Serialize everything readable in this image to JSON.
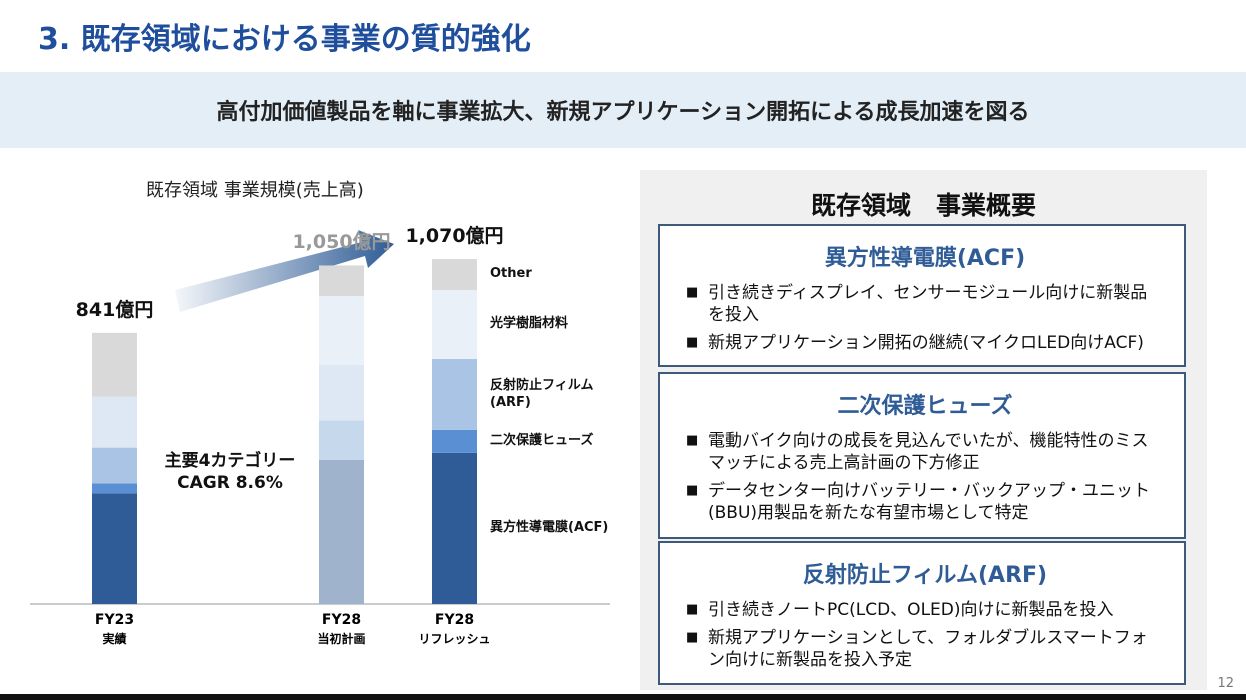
{
  "header": {
    "title": "3. 既存領域における事業の質的強化",
    "banner": "高付加価値製品を軸に事業拡大、新規アプリケーション開拓による成長加速を図る"
  },
  "chart_data": {
    "type": "stacked-bar",
    "title": "既存領域 事業規模(売上高)",
    "categories": [
      "FY23",
      "FY28",
      "FY28"
    ],
    "category_sublabels": [
      "実績",
      "当初計画",
      "リフレッシュ"
    ],
    "series": [
      {
        "name": "異方性導電膜(ACF)",
        "colors": [
          "#2f5c96",
          "#9fb4cc",
          "#2f5c96"
        ],
        "values": [
          343,
          447,
          469
        ]
      },
      {
        "name": "二次保護ヒューズ",
        "colors": [
          "#5b8fd4",
          "#c5d8ec",
          "#5b8fd4"
        ],
        "values": [
          31,
          122,
          71
        ]
      },
      {
        "name": "反射防止フィルム\n(ARF)",
        "colors": [
          "#a9c4e4",
          "#dde8f4",
          "#a9c4e4"
        ],
        "values": [
          111,
          173,
          220
        ]
      },
      {
        "name": "光学樹脂材料",
        "colors": [
          "#dde8f4",
          "#e9f0f8",
          "#e9f0f8"
        ],
        "values": [
          158,
          213,
          214
        ]
      },
      {
        "name": "Other",
        "colors": [
          "#d9d9d9",
          "#d9d9d9",
          "#d9d9d9"
        ],
        "values": [
          198,
          95,
          96
        ]
      }
    ],
    "totals": [
      841,
      1050,
      1070
    ],
    "total_labels": [
      "841億円",
      "1,050億円",
      "1,070億円"
    ],
    "total_label_colors": [
      "#111111",
      "#999999",
      "#111111"
    ],
    "ylim": [
      0,
      1070
    ],
    "annotation": "主要4カテゴリー\nCAGR 8.6%"
  },
  "overview": {
    "title": "既存領域　事業概要",
    "sections": [
      {
        "heading": "異方性導電膜(ACF)",
        "bullets": [
          "引き続きディスプレイ、センサーモジュール向けに新製品を投入",
          "新規アプリケーション開拓の継続(マイクロLED向けACF)"
        ]
      },
      {
        "heading": "二次保護ヒューズ",
        "bullets": [
          "電動バイク向けの成長を見込んでいたが、機能特性のミスマッチによる売上高計画の下方修正",
          "データセンター向けバッテリー・バックアップ・ユニット(BBU)用製品を新たな有望市場として特定"
        ]
      },
      {
        "heading": "反射防止フィルム(ARF)",
        "bullets": [
          "引き続きノートPC(LCD、OLED)向けに新製品を投入",
          "新規アプリケーションとして、フォルダブルスマートフォン向けに新製品を投入予定"
        ]
      }
    ]
  },
  "page_number": "12"
}
